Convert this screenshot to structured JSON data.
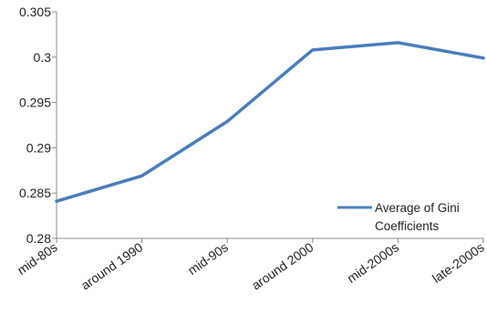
{
  "chart_data": {
    "type": "line",
    "title": "",
    "xlabel": "",
    "ylabel": "",
    "categories": [
      "mid-80s",
      "around 1990",
      "mid-90s",
      "around 2000",
      "mid-2000s",
      "late-2000s"
    ],
    "series": [
      {
        "name": "Average of Gini Coefficients",
        "values": [
          0.2841,
          0.2869,
          0.2929,
          0.3008,
          0.3016,
          0.2999
        ],
        "color": "#4a7ebb"
      }
    ],
    "ylim": [
      0.28,
      0.305
    ],
    "y_ticks": [
      0.28,
      0.285,
      0.29,
      0.295,
      0.3,
      0.305
    ],
    "y_tick_labels": [
      "0.28",
      "0.285",
      "0.29",
      "0.295",
      "0.3",
      "0.305"
    ],
    "grid": false,
    "legend": {
      "position": "inside-bottom-right",
      "lines": [
        "Average of Gini",
        "Coefficients"
      ]
    }
  }
}
